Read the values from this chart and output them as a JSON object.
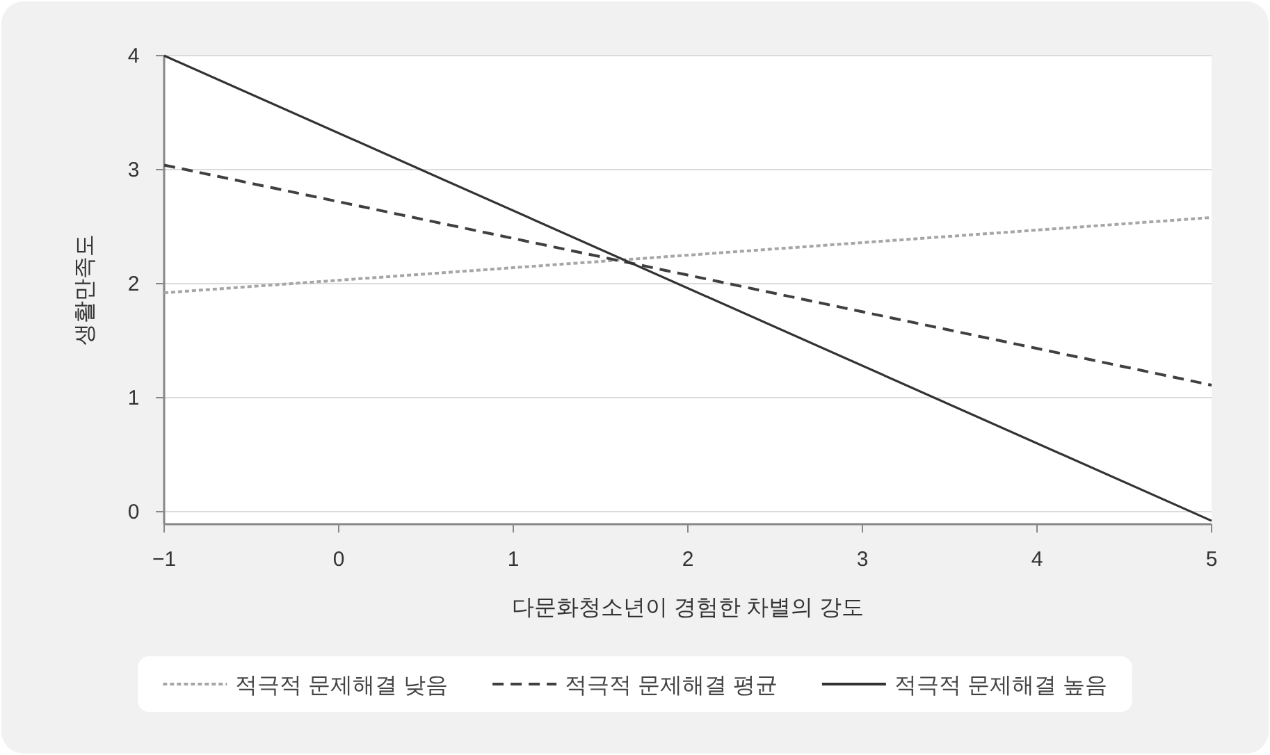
{
  "chart_data": {
    "type": "line",
    "xlabel": "다문화청소년이 경험한 차별의 강도",
    "ylabel": "생활만족도",
    "xlim": [
      -1,
      5
    ],
    "xticks": [
      {
        "value": -1,
        "label": "−1"
      },
      0,
      1,
      2,
      3,
      4,
      5
    ],
    "ylim": [
      -0.11,
      4
    ],
    "yticks": [
      0,
      1,
      2,
      3,
      4
    ],
    "grid": "y",
    "legend": "bottom",
    "x": [
      -1,
      5
    ],
    "series": [
      {
        "name": "적극적 문제해결 낮음",
        "color": "#a6a6a6",
        "line_style": "dotted",
        "values": [
          1.92,
          2.58
        ]
      },
      {
        "name": "적극적 문제해결 평균",
        "color": "#404040",
        "line_style": "dashed",
        "values": [
          3.04,
          1.11
        ]
      },
      {
        "name": "적극적 문제해결 높음",
        "color": "#333333",
        "line_style": "solid",
        "values": [
          4.0,
          -0.08
        ]
      }
    ]
  }
}
